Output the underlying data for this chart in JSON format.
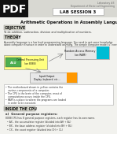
{
  "bg_color": "#f2f2ee",
  "pdf_label": "PDF",
  "pdf_bg": "#111111",
  "header_bg": "#d8d8d2",
  "header_line1": "Laboratory #3",
  "header_line2": "Department of Electrical Engineering",
  "lab_session_title": "LAB SESSION 3",
  "main_title": "Arithmetic Operations in Assembly Language",
  "objective_label": "OBJECTIVE",
  "objective_text": "To do addition, subtraction, division and multiplication of numbers.",
  "theory_label": "THEORY",
  "theory_text1": "Assembly language is a low level programming language. You need to get some knowledge",
  "theory_text2": "about computer structure in order to understand anything. The simple computer model is I need.",
  "ram_label": "Random Access Memory",
  "ram_sub": "(on RAM)",
  "cpu_label": "Central Processing Unit",
  "cpu_sub": "(an 8086)",
  "ram_box_color": "#e8e8e8",
  "ram_accent_color": "#00bcd4",
  "cpu_box_color": "#ffff80",
  "cpu_inner_color": "#4caf50",
  "io_box_color": "#e8e8e8",
  "io_accent_color": "#ff9800",
  "io_label": "Input/Output",
  "io_sub": "Display, keyboard, etc ...",
  "bullet1a": "The motherboard shown in yellow contains the",
  "bullet1b": "various components of a computer.",
  "bullet2a": "The CPU is the brain of the computer, most of",
  "bullet2b": "computations occurs inside the CPU.",
  "bullet3a": "RAM is a place to where the programs are loaded",
  "bullet3b": "in order to be executed.",
  "inside_cpu_label": "INSIDE THE CPU",
  "inside_cpu_sub": "a)  General purpose registers:",
  "inside_cpu_desc": "8088 CPU has 8 general purpose registers, each register has its own name.",
  "reg1": "AX - the accumulator register (divided into AH + AL)",
  "reg2": "BX - the base address register (divided into BH + BL)",
  "reg3": "CX - the count register (divided into CH + CL)"
}
